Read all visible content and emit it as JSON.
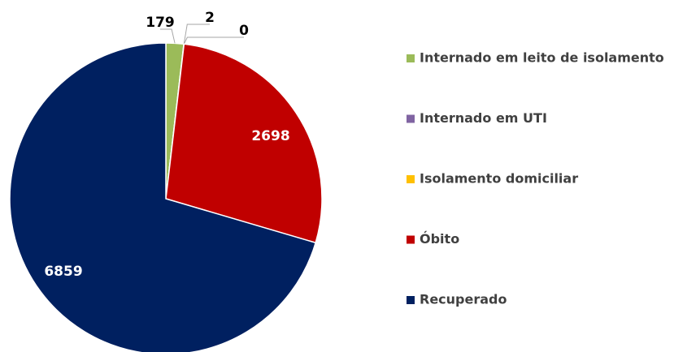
{
  "chart_data": {
    "type": "pie",
    "categories": [
      "Internado em leito de isolamento",
      "Internado em UTI",
      "Isolamento domiciliar",
      "Óbito",
      "Recuperado"
    ],
    "values": [
      179,
      2,
      0,
      2698,
      6859
    ],
    "colors": [
      "#9bbb59",
      "#8064a2",
      "#ffc000",
      "#c00000",
      "#002060"
    ],
    "legend": "right"
  }
}
